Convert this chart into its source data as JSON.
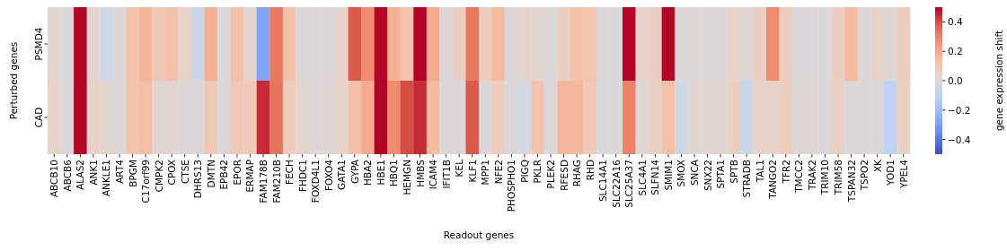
{
  "chart_data": {
    "type": "heatmap",
    "xlabel": "Readout genes",
    "ylabel": "Perturbed genes",
    "clabel": "gene expression shift",
    "categories": [
      "ABCB10",
      "ABCB6",
      "ALAS2",
      "ANK1",
      "ANKLE1",
      "ART4",
      "BPGM",
      "C17orf99",
      "CMPK2",
      "CPOX",
      "CTSE",
      "DHRS13",
      "DMTN",
      "EPB42",
      "EPOR",
      "ERMAP",
      "FAM178B",
      "FAM210B",
      "FECH",
      "FHDC1",
      "FOXD4L1",
      "FOXO4",
      "GATA1",
      "GYPA",
      "HBA2",
      "HBE1",
      "HBQ1",
      "HEMGN",
      "HMBS",
      "ICAM4",
      "IFIT1B",
      "KEL",
      "KLF1",
      "MPP1",
      "NFE2",
      "PHOSPHO1",
      "PIGQ",
      "PKLR",
      "PLEK2",
      "RFESD",
      "RHAG",
      "RHD",
      "SLC14A1",
      "SLC22A16",
      "SLC25A37",
      "SLC4A1",
      "SLFN14",
      "SMIM1",
      "SMOX",
      "SNCA",
      "SNX22",
      "SPTA1",
      "SPTB",
      "STRADB",
      "TAL1",
      "TANGO2",
      "TFR2",
      "TMCC2",
      "TRAK2",
      "TRIM10",
      "TRIM58",
      "TSPAN32",
      "TSPO2",
      "XK",
      "YOD1",
      "YPEL4"
    ],
    "y_categories": [
      "PSMD4",
      "CAD"
    ],
    "cells": [
      [
        0.03,
        0,
        0.5,
        0.03,
        -0.04,
        0,
        0.12,
        0.17,
        0.1,
        0.13,
        0.05,
        -0.06,
        0.18,
        0,
        0.13,
        0.03,
        -0.28,
        0.32,
        0.13,
        0,
        0,
        0,
        0.05,
        0.38,
        0.28,
        0.5,
        0.18,
        0.12,
        0.5,
        0.2,
        0,
        0.07,
        0.32,
        0.08,
        0.15,
        0,
        0.04,
        0.03,
        0,
        0.07,
        0.13,
        0.12,
        0,
        0,
        0.5,
        0.05,
        0.07,
        0.5,
        0,
        0.01,
        0,
        0,
        0.05,
        0.02,
        0.07,
        0.28,
        0.08,
        0,
        0,
        0,
        0.07,
        0.15,
        0,
        0.05,
        0.02,
        0.08
      ],
      [
        0.05,
        0,
        0.5,
        0.05,
        0.03,
        0,
        0.12,
        0.14,
        0.02,
        0.02,
        0.01,
        0,
        0.1,
        0,
        0.1,
        0.1,
        0.45,
        0.33,
        0.08,
        0.03,
        0.01,
        0.01,
        0.05,
        0.13,
        0.2,
        0.5,
        0.28,
        0.4,
        0.45,
        0.15,
        0,
        0.01,
        0.38,
        0,
        0.08,
        0,
        -0.03,
        0.12,
        0,
        0.16,
        0.16,
        0.1,
        0,
        0,
        0.3,
        0.02,
        0.06,
        0.13,
        -0.04,
        0.02,
        0.02,
        0.02,
        0.07,
        -0.06,
        0.05,
        0.05,
        0.08,
        0.02,
        0.01,
        0,
        0.06,
        0,
        0,
        0,
        -0.1,
        0.06
      ]
    ],
    "clim": [
      -0.5,
      0.5
    ],
    "cticks": [
      {
        "value": -0.4,
        "label": "−0.4"
      },
      {
        "value": -0.2,
        "label": "−0.2"
      },
      {
        "value": 0,
        "label": "0.0"
      },
      {
        "value": 0.2,
        "label": "0.2"
      },
      {
        "value": 0.4,
        "label": "0.4"
      }
    ]
  }
}
